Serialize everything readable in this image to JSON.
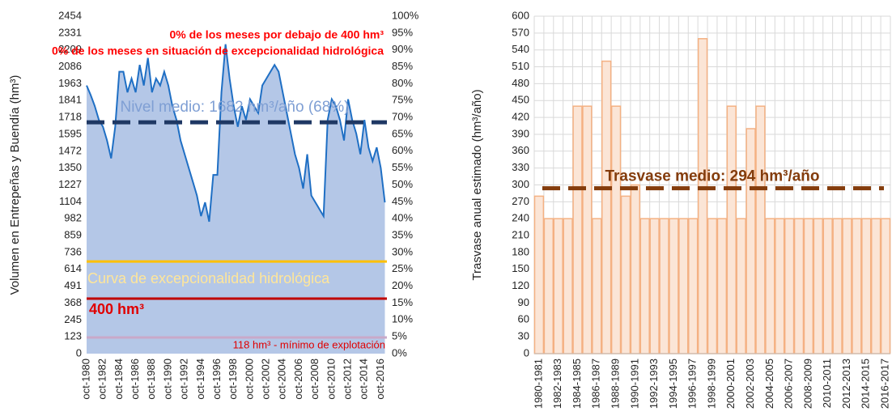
{
  "chart_data": [
    {
      "type": "area",
      "y_label": "Volumen en Entrepeñas y Buendía (hm³)",
      "color": "#1f6fc4",
      "fill": "#b4c7e7",
      "x": [
        1980.75,
        1981.25,
        1981.75,
        1982.25,
        1982.75,
        1983.25,
        1983.75,
        1984.25,
        1984.75,
        1985.25,
        1985.75,
        1986.25,
        1986.75,
        1987.25,
        1987.75,
        1988.25,
        1988.75,
        1989.25,
        1989.75,
        1990.25,
        1990.75,
        1991.25,
        1991.75,
        1992.25,
        1992.75,
        1993.25,
        1993.75,
        1994.25,
        1994.75,
        1995.25,
        1995.75,
        1996.25,
        1996.75,
        1997.25,
        1997.75,
        1998.25,
        1998.75,
        1999.25,
        1999.75,
        2000.25,
        2000.75,
        2001.25,
        2001.75,
        2002.25,
        2002.75,
        2003.25,
        2003.75,
        2004.25,
        2004.75,
        2005.25,
        2005.75,
        2006.25,
        2006.75,
        2007.25,
        2007.75,
        2008.25,
        2008.75,
        2009.25,
        2009.75,
        2010.25,
        2010.75,
        2011.25,
        2011.75,
        2012.25,
        2012.75,
        2013.25,
        2013.75,
        2014.25,
        2014.75,
        2015.25,
        2015.75,
        2016.25,
        2016.75,
        2017.25
      ],
      "values": [
        1950,
        1880,
        1800,
        1700,
        1650,
        1550,
        1420,
        1650,
        2050,
        2050,
        1900,
        2000,
        1900,
        2100,
        1950,
        2150,
        1900,
        2000,
        1950,
        2050,
        1950,
        1800,
        1700,
        1550,
        1450,
        1350,
        1250,
        1150,
        1000,
        1100,
        960,
        1300,
        1300,
        1900,
        2250,
        2000,
        1800,
        1650,
        1800,
        1700,
        1850,
        1800,
        1750,
        1950,
        2000,
        2050,
        2100,
        2050,
        1900,
        1750,
        1600,
        1450,
        1350,
        1200,
        1450,
        1150,
        1100,
        1050,
        1000,
        1700,
        1850,
        1800,
        1700,
        1550,
        1850,
        1700,
        1600,
        1450,
        1700,
        1500,
        1400,
        1500,
        1350,
        1100
      ],
      "xlim": [
        1980.75,
        2017.5
      ],
      "xticks": [
        {
          "value": 1980.75,
          "label": "oct-1980"
        },
        {
          "value": 1982.75,
          "label": "oct-1982"
        },
        {
          "value": 1984.75,
          "label": "oct-1984"
        },
        {
          "value": 1986.75,
          "label": "oct-1986"
        },
        {
          "value": 1988.75,
          "label": "oct-1988"
        },
        {
          "value": 1990.75,
          "label": "oct-1990"
        },
        {
          "value": 1992.75,
          "label": "oct-1992"
        },
        {
          "value": 1994.75,
          "label": "oct-1994"
        },
        {
          "value": 1996.75,
          "label": "oct-1996"
        },
        {
          "value": 1998.75,
          "label": "oct-1998"
        },
        {
          "value": 2000.75,
          "label": "oct-2000"
        },
        {
          "value": 2002.75,
          "label": "oct-2002"
        },
        {
          "value": 2004.75,
          "label": "oct-2004"
        },
        {
          "value": 2006.75,
          "label": "oct-2006"
        },
        {
          "value": 2008.75,
          "label": "oct-2008"
        },
        {
          "value": 2010.75,
          "label": "oct-2010"
        },
        {
          "value": 2012.75,
          "label": "oct-2012"
        },
        {
          "value": 2014.75,
          "label": "oct-2014"
        },
        {
          "value": 2016.75,
          "label": "oct-2016"
        }
      ],
      "ylim": [
        0,
        2454
      ],
      "yticks": [
        0,
        123,
        245,
        368,
        491,
        614,
        736,
        859,
        982,
        1104,
        1227,
        1350,
        1472,
        1595,
        1718,
        1841,
        1963,
        2086,
        2209,
        2331,
        2454
      ],
      "y2lim": [
        0,
        100
      ],
      "y2ticks": [
        {
          "value": 0,
          "label": "0%"
        },
        {
          "value": 5,
          "label": "5%"
        },
        {
          "value": 10,
          "label": "10%"
        },
        {
          "value": 15,
          "label": "15%"
        },
        {
          "value": 20,
          "label": "20%"
        },
        {
          "value": 25,
          "label": "25%"
        },
        {
          "value": 30,
          "label": "30%"
        },
        {
          "value": 35,
          "label": "35%"
        },
        {
          "value": 40,
          "label": "40%"
        },
        {
          "value": 45,
          "label": "45%"
        },
        {
          "value": 50,
          "label": "50%"
        },
        {
          "value": 55,
          "label": "55%"
        },
        {
          "value": 60,
          "label": "60%"
        },
        {
          "value": 65,
          "label": "65%"
        },
        {
          "value": 70,
          "label": "70%"
        },
        {
          "value": 75,
          "label": "75%"
        },
        {
          "value": 80,
          "label": "80%"
        },
        {
          "value": 85,
          "label": "85%"
        },
        {
          "value": 90,
          "label": "90%"
        },
        {
          "value": 95,
          "label": "95%"
        },
        {
          "value": 100,
          "label": "100%"
        }
      ],
      "grid": false,
      "reference_lines": [
        {
          "value": 1682,
          "label": "Nivel medio: 1682 hm³/año (68%)",
          "color": "#1f3864",
          "style": "dashed"
        },
        {
          "value": 670,
          "label": "Curva de excepcionalidad hidrológica",
          "color": "#ffc000",
          "style": "solid"
        },
        {
          "value": 400,
          "label": "400 hm³",
          "color": "#c00000",
          "style": "solid"
        },
        {
          "value": 118,
          "label": "118 hm³ - mínimo de explotación",
          "color": "#c9a9c9",
          "style": "solid"
        }
      ],
      "annotations": [
        "0% de los meses por debajo de 400 hm³",
        "0% de los meses en situación de excepcionalidad hidrológica"
      ]
    },
    {
      "type": "bar",
      "y_label": "Trasvase anual estimado  (hm³/año)",
      "color": "#fbe5d6",
      "edge_color": "#f4b183",
      "categories": [
        "1980-1981",
        null,
        "1982-1983",
        null,
        "1984-1985",
        null,
        "1986-1987",
        null,
        "1988-1989",
        null,
        "1990-1991",
        null,
        "1992-1993",
        null,
        "1994-1995",
        null,
        "1996-1997",
        null,
        "1998-1999",
        null,
        "2000-2001",
        null,
        "2002-2003",
        null,
        "2004-2005",
        null,
        "2006-2007",
        null,
        "2008-2009",
        null,
        "2010-2011",
        null,
        "2012-2013",
        null,
        "2014-2015",
        null,
        "2016-2017"
      ],
      "values": [
        280,
        240,
        240,
        240,
        440,
        440,
        240,
        520,
        440,
        280,
        300,
        240,
        240,
        240,
        240,
        240,
        240,
        560,
        240,
        240,
        440,
        240,
        400,
        440,
        240,
        240,
        240,
        240,
        240,
        240,
        240,
        240,
        240,
        240,
        240,
        240,
        240
      ],
      "ylim": [
        0,
        600
      ],
      "yticks": [
        0,
        30,
        60,
        90,
        120,
        150,
        180,
        210,
        240,
        270,
        300,
        330,
        360,
        390,
        420,
        450,
        480,
        510,
        540,
        570,
        600
      ],
      "grid": true,
      "reference_lines": [
        {
          "value": 294,
          "label": "Trasvase medio: 294 hm³/año",
          "color": "#843c0c",
          "style": "dashed"
        }
      ]
    }
  ]
}
